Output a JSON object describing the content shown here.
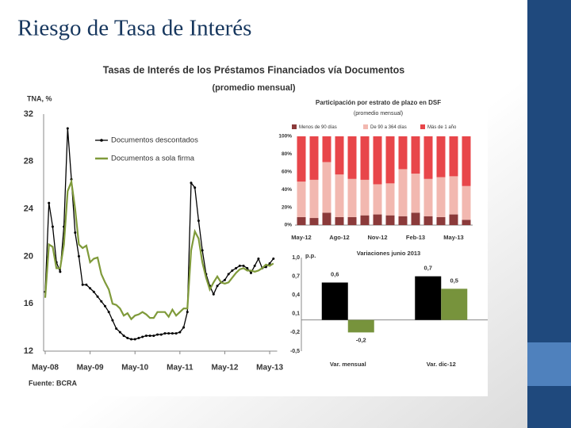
{
  "slide_title": "Riesgo de Tasa de Interés",
  "source": "Fuente: BCRA",
  "chart_data": [
    {
      "type": "line",
      "title": "Tasas de Interés de los Préstamos Financiados vía Documentos",
      "subtitle": "(promedio mensual)",
      "ylabel": "TNA, %",
      "x": [
        0,
        1,
        2,
        3,
        4,
        5,
        6,
        7,
        8,
        9,
        10,
        11,
        12,
        13,
        14,
        15,
        16,
        17,
        18,
        19,
        20,
        21,
        22,
        23,
        24,
        25,
        26,
        27,
        28,
        29,
        30,
        31,
        32,
        33,
        34,
        35,
        36,
        37,
        38,
        39,
        40,
        41,
        42,
        43,
        44,
        45,
        46,
        47,
        48,
        49,
        50,
        51,
        52,
        53,
        54,
        55,
        56,
        57,
        58,
        59,
        60,
        61
      ],
      "xlim": [
        0,
        62
      ],
      "xticks": [
        {
          "value": 0,
          "label": "May-08"
        },
        {
          "value": 12,
          "label": "May-09"
        },
        {
          "value": 24,
          "label": "May-10"
        },
        {
          "value": 36,
          "label": "May-11"
        },
        {
          "value": 48,
          "label": "May-12"
        },
        {
          "value": 60,
          "label": "May-13"
        }
      ],
      "ylim": [
        12,
        32
      ],
      "yticks": [
        12,
        16,
        20,
        24,
        28,
        32
      ],
      "series": [
        {
          "name": "Documentos descontados",
          "color": "#000000",
          "marker": "circle",
          "values": [
            17,
            24.5,
            22.5,
            19.5,
            18.7,
            22.5,
            30.8,
            26.5,
            22,
            20,
            17.6,
            17.6,
            17.3,
            17,
            16.6,
            16.2,
            15.8,
            15.3,
            14.6,
            13.9,
            13.6,
            13.3,
            13.1,
            13,
            13,
            13.1,
            13.2,
            13.3,
            13.3,
            13.3,
            13.4,
            13.4,
            13.5,
            13.5,
            13.5,
            13.5,
            13.6,
            14,
            15.3,
            26.2,
            25.8,
            23,
            20.5,
            18.5,
            17.5,
            16.8,
            17.5,
            17.8,
            18,
            18.5,
            18.8,
            19,
            19.2,
            19.2,
            19,
            18.6,
            19.2,
            19.8,
            19,
            19.1,
            19.4,
            19.8
          ]
        },
        {
          "name": "Documentos a sola firma",
          "color": "#7f9a3a",
          "values": [
            16.5,
            21,
            20.8,
            19,
            19,
            21,
            25.5,
            26.3,
            24,
            21,
            20.7,
            20.9,
            19.5,
            19.8,
            19.9,
            18.5,
            17.8,
            17.2,
            16,
            15.9,
            15.6,
            15,
            15.2,
            14.7,
            15,
            15.1,
            15.3,
            15.1,
            14.8,
            14.8,
            15.3,
            15.3,
            15.3,
            14.9,
            15.5,
            15,
            15.3,
            15.6,
            15.6,
            20.5,
            22.1,
            21.5,
            19.5,
            18.2,
            17.2,
            17.8,
            18.3,
            17.8,
            17.7,
            17.8,
            18.2,
            18.6,
            18.9,
            19,
            18.8,
            18.8,
            18.7,
            18.8,
            19,
            19.3,
            19.2,
            19.4
          ]
        }
      ]
    },
    {
      "type": "stacked_bar",
      "title": "Participación por estrato de plazo en DSF",
      "subtitle": "(promedio mensual)",
      "categories": [
        "May-12",
        null,
        null,
        "Ago-12",
        null,
        null,
        "Nov-12",
        null,
        null,
        "Feb-13",
        null,
        null,
        "May-13",
        null
      ],
      "ylim": [
        0,
        100
      ],
      "yticks": [
        {
          "value": 0,
          "label": "0%"
        },
        {
          "value": 20,
          "label": "20%"
        },
        {
          "value": 40,
          "label": "40%"
        },
        {
          "value": 60,
          "label": "60%"
        },
        {
          "value": 80,
          "label": "80%"
        },
        {
          "value": 100,
          "label": "100%"
        }
      ],
      "series": [
        {
          "name": "Menos de 90 días",
          "color": "#8b3a3a",
          "values": [
            9,
            8,
            14,
            9,
            9,
            11,
            12,
            11,
            10,
            14,
            10,
            9,
            12,
            6
          ]
        },
        {
          "name": "De 90 a 364 días",
          "color": "#f2b8b0",
          "values": [
            40,
            43,
            57,
            48,
            43,
            40,
            34,
            36,
            53,
            44,
            42,
            45,
            43,
            38
          ]
        },
        {
          "name": "Más de 1 año",
          "color": "#e8464a",
          "values": [
            51,
            49,
            29,
            43,
            48,
            49,
            54,
            53,
            37,
            42,
            48,
            46,
            45,
            56
          ]
        }
      ]
    },
    {
      "type": "bar",
      "title": "Variaciones junio 2013",
      "ylabel": "p.p.",
      "categories": [
        "Var. mensual",
        "Var. dic-12"
      ],
      "ylim": [
        -0.5,
        1.0
      ],
      "yticks": [
        {
          "value": -0.5,
          "label": "-0,5"
        },
        {
          "value": -0.2,
          "label": "-0,2"
        },
        {
          "value": 0.1,
          "label": "0,1"
        },
        {
          "value": 0.4,
          "label": "0,4"
        },
        {
          "value": 0.7,
          "label": "0,7"
        },
        {
          "value": 1.0,
          "label": "1,0"
        }
      ],
      "series": [
        {
          "color": "#000000",
          "values": [
            0.6,
            0.7
          ],
          "value_labels": [
            "0,6",
            "0,7"
          ]
        },
        {
          "color": "#77933c",
          "values": [
            -0.2,
            0.5
          ],
          "value_labels": [
            "-0,2",
            "0,5"
          ]
        }
      ]
    }
  ]
}
